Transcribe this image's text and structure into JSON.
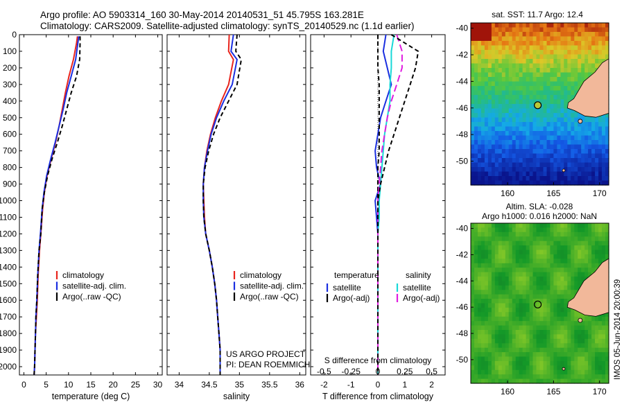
{
  "title_line1": "Argo profile: AO 5903314_160 30-May-2014 20140531_51 45.795S 163.281E",
  "title_line2": "Climatology: CARS2009. Satellite-adjusted climatology: synTS_20140529.nc (1.1d earlier)",
  "credit": "IMOS 05-Jun-2014 20:00:39",
  "colors": {
    "red": "#e8241d",
    "blue": "#1a2ee0",
    "black": "#000000",
    "cyan": "#18d8d8",
    "magenta": "#e01ce0",
    "land": "#f2b89a"
  },
  "chart_data": [
    {
      "type": "line",
      "panel": "temperature",
      "xlabel": "temperature (deg C)",
      "xlim": [
        -1,
        31
      ],
      "xticks": [
        0,
        5,
        10,
        15,
        20,
        25,
        30
      ],
      "ylim": [
        0,
        2050
      ],
      "yticks": [
        0,
        100,
        200,
        300,
        400,
        500,
        600,
        700,
        800,
        900,
        1000,
        1100,
        1200,
        1300,
        1400,
        1500,
        1600,
        1700,
        1800,
        1900,
        2000
      ],
      "legend": [
        "climatology",
        "satellite-adj. clim.",
        "Argo(..raw -QC)"
      ],
      "series": [
        {
          "name": "climatology",
          "color": "red",
          "dash": "",
          "x": [
            12.0,
            11.8,
            11.1,
            10.1,
            9.3,
            8.6,
            7.9,
            7.1,
            6.1,
            5.2,
            4.6,
            4.2,
            3.8,
            3.5,
            3.2,
            3.0,
            2.8,
            2.6,
            2.5,
            2.4,
            2.3
          ],
          "y": [
            10,
            50,
            150,
            250,
            350,
            450,
            550,
            650,
            750,
            850,
            950,
            1050,
            1200,
            1300,
            1450,
            1600,
            1700,
            1800,
            1900,
            2000,
            2050
          ]
        },
        {
          "name": "satellite-adj. clim.",
          "color": "blue",
          "dash": "",
          "x": [
            12.3,
            12.1,
            11.6,
            10.6,
            9.6,
            8.8,
            7.9,
            7.0,
            6.0,
            5.1,
            4.5,
            4.1,
            3.7,
            3.4,
            3.1,
            2.9,
            2.7,
            2.6,
            2.5,
            2.4,
            2.3
          ],
          "y": [
            10,
            50,
            150,
            250,
            350,
            450,
            550,
            650,
            750,
            850,
            950,
            1050,
            1200,
            1300,
            1450,
            1600,
            1700,
            1800,
            1900,
            2000,
            2050
          ]
        },
        {
          "name": "Argo(..raw -QC)",
          "color": "black",
          "dash": "6,4",
          "x": [
            12.6,
            12.6,
            12.5,
            11.8,
            10.6,
            9.6,
            8.6,
            7.5,
            6.3,
            5.3,
            4.6,
            4.1,
            3.8,
            3.4,
            3.1,
            2.9,
            2.7,
            2.6,
            2.5,
            2.4,
            2.3
          ],
          "y": [
            10,
            50,
            150,
            250,
            350,
            450,
            550,
            650,
            750,
            850,
            950,
            1050,
            1200,
            1300,
            1450,
            1600,
            1700,
            1800,
            1900,
            2000,
            2050
          ]
        }
      ]
    },
    {
      "type": "line",
      "panel": "salinity",
      "xlabel": "salinity",
      "xlim": [
        33.8,
        36.1
      ],
      "xticks": [
        34,
        34.5,
        35,
        35.5,
        36
      ],
      "ylim": [
        0,
        2050
      ],
      "legend": [
        "climatology",
        "satellite-adj. clim.",
        "Argo(..raw -QC)"
      ],
      "annotations": [
        "US ARGO PROJECT",
        "PI: DEAN ROEMMICH"
      ],
      "series": [
        {
          "name": "climatology",
          "color": "red",
          "dash": "",
          "x": [
            34.83,
            34.82,
            34.9,
            34.82,
            34.7,
            34.6,
            34.52,
            34.46,
            34.42,
            34.4,
            34.41,
            34.42,
            34.44,
            34.5,
            34.55,
            34.59,
            34.62,
            34.64,
            34.66,
            34.68,
            34.68
          ],
          "y": [
            0,
            100,
            150,
            300,
            400,
            500,
            600,
            700,
            800,
            900,
            1000,
            1100,
            1200,
            1300,
            1400,
            1500,
            1600,
            1700,
            1800,
            1900,
            2050
          ]
        },
        {
          "name": "satellite-adj. clim.",
          "color": "blue",
          "dash": "",
          "x": [
            34.9,
            34.86,
            34.96,
            34.88,
            34.74,
            34.62,
            34.53,
            34.47,
            34.42,
            34.4,
            34.4,
            34.41,
            34.44,
            34.5,
            34.55,
            34.59,
            34.62,
            34.64,
            34.66,
            34.68,
            34.68
          ],
          "y": [
            0,
            100,
            150,
            300,
            400,
            500,
            600,
            700,
            800,
            900,
            1000,
            1100,
            1200,
            1300,
            1400,
            1500,
            1600,
            1700,
            1800,
            1900,
            2050
          ]
        },
        {
          "name": "Argo(..raw -QC)",
          "color": "black",
          "dash": "6,4",
          "x": [
            34.96,
            34.94,
            35.03,
            34.96,
            34.82,
            34.68,
            34.57,
            34.49,
            34.43,
            34.4,
            34.4,
            34.41,
            34.44,
            34.5,
            34.55,
            34.59,
            34.62,
            34.64,
            34.66,
            34.68,
            34.68
          ],
          "y": [
            0,
            100,
            150,
            300,
            400,
            500,
            600,
            700,
            800,
            900,
            1000,
            1100,
            1200,
            1300,
            1400,
            1500,
            1600,
            1700,
            1800,
            1900,
            2050
          ]
        }
      ]
    },
    {
      "type": "line",
      "panel": "difference",
      "xlabel": "T difference from climatology",
      "xlabel_top": "S difference from climatology",
      "xlim": [
        -2.5,
        2.5
      ],
      "xticks": [
        -2,
        -1,
        0,
        1,
        2
      ],
      "xticks_s": [
        "-0.5",
        "-0.25",
        "0",
        "0.25",
        "0.5"
      ],
      "ylim": [
        0,
        2050
      ],
      "legend_groups": [
        {
          "heading": "temperature",
          "items": [
            "satellite",
            "Argo(-adj)"
          ]
        },
        {
          "heading": "salinity",
          "items": [
            "satellite",
            "Argo(-adj)"
          ]
        }
      ],
      "series": [
        {
          "name": "temperature satellite",
          "color": "blue",
          "dash": "",
          "x": [
            0.3,
            0.2,
            0.35,
            0.5,
            0.3,
            0.1,
            0.0,
            -0.1,
            -0.05,
            0.1,
            -0.1,
            -0.05,
            0.0,
            0.0,
            0.0,
            0.0,
            0.0
          ],
          "y": [
            0,
            100,
            200,
            300,
            400,
            500,
            600,
            700,
            800,
            900,
            1000,
            1100,
            1200,
            1400,
            1600,
            1800,
            2050
          ]
        },
        {
          "name": "temperature Argo(-adj)",
          "color": "black",
          "dash": "6,4",
          "x": [
            0.0,
            0.0,
            0.0,
            0.05,
            0.05,
            0.05,
            0.05,
            0.05,
            0.0,
            0.0,
            0.0,
            0.0,
            0.0,
            0.0,
            0.0,
            0.0,
            0.0
          ],
          "y": [
            0,
            100,
            200,
            300,
            400,
            500,
            600,
            700,
            800,
            900,
            1000,
            1100,
            1200,
            1400,
            1600,
            1800,
            2050
          ]
        },
        {
          "name": "salinity satellite",
          "color": "cyan",
          "dash": "",
          "x": [
            0.6,
            0.5,
            0.5,
            0.45,
            0.45,
            0.35,
            0.25,
            0.2,
            0.15,
            0.1,
            0.05,
            0.05,
            0.0,
            0.0,
            0.0,
            0.0,
            0.0
          ],
          "y": [
            0,
            100,
            200,
            300,
            400,
            500,
            600,
            700,
            800,
            900,
            1000,
            1100,
            1200,
            1400,
            1600,
            1800,
            2050
          ]
        },
        {
          "name": "salinity Argo(-adj)",
          "color": "magenta",
          "dash": "10,5",
          "x": [
            0.7,
            0.9,
            0.9,
            0.7,
            0.5,
            0.35,
            0.25,
            0.15,
            0.1,
            0.05,
            0.0,
            0.0,
            0.0,
            0.0,
            0.0,
            0.0,
            0.0
          ],
          "y": [
            0,
            100,
            200,
            300,
            400,
            500,
            600,
            700,
            800,
            900,
            1000,
            1100,
            1200,
            1400,
            1600,
            1800,
            2050
          ]
        },
        {
          "name": "Argo raw",
          "color": "black",
          "dash": "6,4",
          "x": [
            0.5,
            1.5,
            1.4,
            1.2,
            1.0,
            0.8,
            0.6,
            0.4,
            0.25,
            0.1,
            0.0,
            0.0,
            0.0,
            0.0,
            0.0,
            0.0,
            0.0
          ],
          "y": [
            0,
            100,
            200,
            300,
            400,
            500,
            600,
            700,
            800,
            900,
            1000,
            1100,
            1200,
            1400,
            1600,
            1800,
            2050
          ]
        }
      ]
    },
    {
      "type": "heatmap",
      "panel": "sst",
      "title": "sat. SST: 11.7  Argo: 12.4",
      "xlim": [
        156,
        171
      ],
      "xticks": [
        160,
        165,
        170
      ],
      "ylim": [
        -51.8,
        -39.6
      ],
      "yticks": [
        -40,
        -42,
        -44,
        -46,
        -48,
        -50
      ],
      "marker": {
        "lon": 163.281,
        "lat": -45.795
      }
    },
    {
      "type": "heatmap",
      "panel": "sla",
      "title": "Altim. SLA: -0.028",
      "subtitle": "Argo h1000: 0.016 h2000: NaN",
      "xlim": [
        156,
        171
      ],
      "xticks": [
        160,
        165,
        170
      ],
      "ylim": [
        -51.8,
        -39.6
      ],
      "yticks": [
        -40,
        -42,
        -44,
        -46,
        -48,
        -50
      ],
      "marker": {
        "lon": 163.281,
        "lat": -45.795
      }
    }
  ]
}
